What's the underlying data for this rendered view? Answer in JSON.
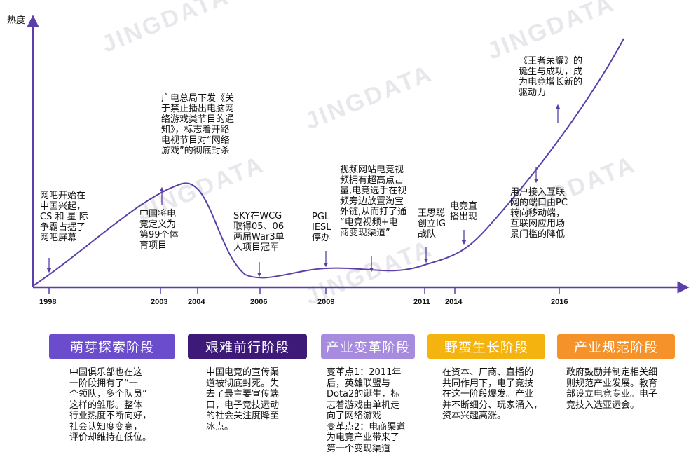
{
  "watermark": "JINGDATA",
  "y_axis_label": "热度",
  "years": [
    "1998",
    "2003",
    "2004",
    "2006",
    "2009",
    "2011",
    "2014",
    "2016"
  ],
  "annotations": {
    "a1998": "网吧开始在\n中国兴起，\nCS 和 星 际\n争霸占据了\n网吧屏幕",
    "a2003": "中国将电\n竞定义为\n第99个体\n育项目",
    "a2004": "广电总局下发《关\n于禁止播出电脑网\n络游戏类节目的通\n知》，标志着开路\n电视节目对“网络\n游戏”的彻底封杀",
    "a2006": "SKY在WCG\n取得05、06\n两届War3单\n人项目冠军",
    "a2009": "PGL\nIESL\n停办",
    "a2010": "视频网站电竞视\n频拥有超高点击\n量,电竞选手在视\n频旁边放置淘宝\n外链,从而打了通\n“电竞视频+电\n商变现渠道”",
    "a2011": "王思聪\n创立IG\n战队",
    "a2014": "电竞直\n播出现",
    "a2015": "用户接入互联\n网的端口由PC\n转向移动端，\n互联网应用场\n景门槛的降低",
    "a2016": "《王者荣耀》的\n诞生与成功，成\n为电竞增长新的\n驱动力"
  },
  "stages": [
    {
      "name": "萌芽探索阶段",
      "color": "#6a4ccc",
      "desc": "中国俱乐部也在这\n一阶段拥有了“一\n个领队，多个队员”\n这样的雏形。整体\n行业热度不断向好，\n社会认知度变高，\n评价却维持在低位。"
    },
    {
      "name": "艰难前行阶段",
      "color": "#3d1a78",
      "desc": "中国电竞的宣传渠\n道被彻底封死。失\n去了最主要宣传端\n口，电子竞技运动\n的社会关注度降至\n冰点。"
    },
    {
      "name": "产业变革阶段",
      "color": "#a68bde",
      "desc": "变革点1：2011年\n后，英雄联盟与\nDota2的诞生，标\n志着游戏由单机走\n向了网络游戏\n变革点2：电商渠道\n为电竞产业带来了\n第一个变现渠道"
    },
    {
      "name": "野蛮生长阶段",
      "color": "#f5b30f",
      "desc": "在资本、厂商、直播的\n共同作用下，电子竞技\n在这一阶段爆发。产业\n并不断细分、玩家涌入，\n资本兴趣高涨。"
    },
    {
      "name": "产业规范阶段",
      "color": "#f5922a",
      "desc": "政府鼓励并制定相关细\n则规范产业发展。教育\n部设立电竞专业。电子\n竞技入选亚运会。"
    }
  ],
  "colors": {
    "axis": "#5b3fa8",
    "curve": "#5b3fa8"
  }
}
